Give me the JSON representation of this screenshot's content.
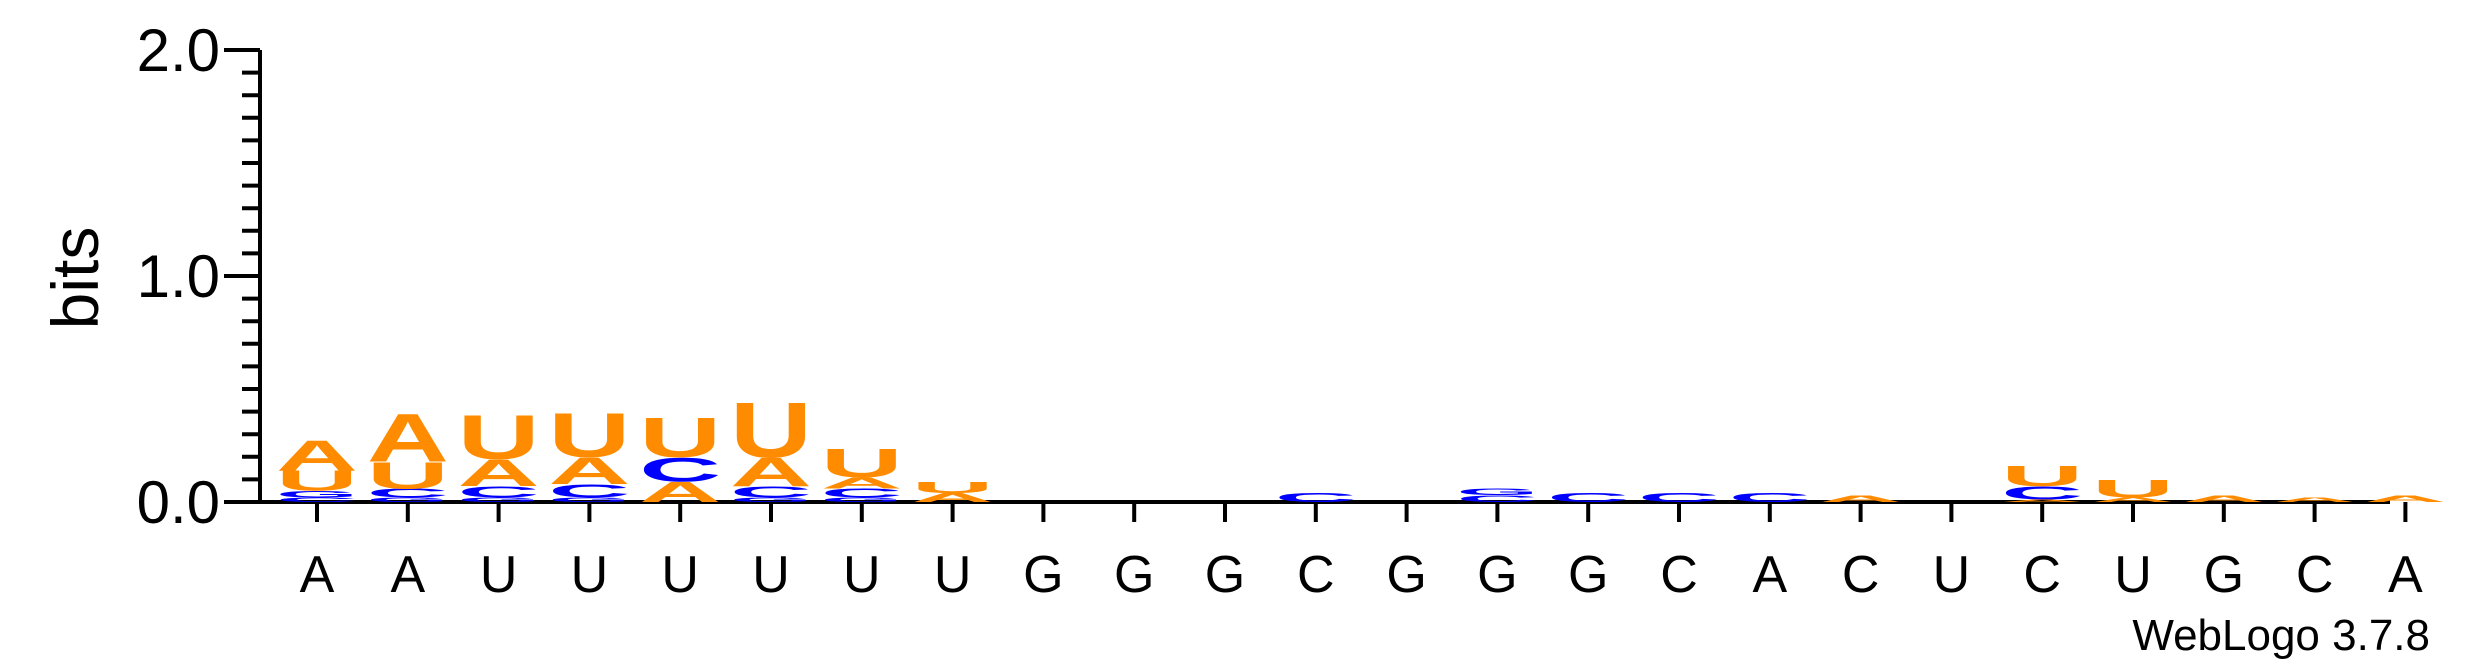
{
  "chart_data": {
    "type": "sequence-logo",
    "ylabel": "bits",
    "ylim": [
      0,
      2.0
    ],
    "y_ticks": [
      "0.0",
      "1.0",
      "2.0"
    ],
    "credit": "WebLogo 3.7.8",
    "colors": {
      "A": "#FF8C00",
      "U": "#FF8C00",
      "C": "#0000FF",
      "G": "#0000FF"
    },
    "positions": [
      {
        "label": "A",
        "stack": [
          {
            "letter": "C",
            "bits": 0.02
          },
          {
            "letter": "G",
            "bits": 0.03
          },
          {
            "letter": "U",
            "bits": 0.09
          },
          {
            "letter": "A",
            "bits": 0.14
          }
        ]
      },
      {
        "label": "A",
        "stack": [
          {
            "letter": "G",
            "bits": 0.02
          },
          {
            "letter": "C",
            "bits": 0.04
          },
          {
            "letter": "U",
            "bits": 0.12
          },
          {
            "letter": "A",
            "bits": 0.22
          }
        ]
      },
      {
        "label": "U",
        "stack": [
          {
            "letter": "G",
            "bits": 0.02
          },
          {
            "letter": "C",
            "bits": 0.05
          },
          {
            "letter": "A",
            "bits": 0.12
          },
          {
            "letter": "U",
            "bits": 0.2
          }
        ]
      },
      {
        "label": "U",
        "stack": [
          {
            "letter": "G",
            "bits": 0.02
          },
          {
            "letter": "C",
            "bits": 0.06
          },
          {
            "letter": "A",
            "bits": 0.12
          },
          {
            "letter": "U",
            "bits": 0.2
          }
        ]
      },
      {
        "label": "U",
        "stack": [
          {
            "letter": "A",
            "bits": 0.09
          },
          {
            "letter": "C",
            "bits": 0.11
          },
          {
            "letter": "U",
            "bits": 0.18
          }
        ]
      },
      {
        "label": "U",
        "stack": [
          {
            "letter": "G",
            "bits": 0.02
          },
          {
            "letter": "C",
            "bits": 0.05
          },
          {
            "letter": "A",
            "bits": 0.13
          },
          {
            "letter": "U",
            "bits": 0.25
          }
        ]
      },
      {
        "label": "U",
        "stack": [
          {
            "letter": "G",
            "bits": 0.02
          },
          {
            "letter": "C",
            "bits": 0.04
          },
          {
            "letter": "A",
            "bits": 0.05
          },
          {
            "letter": "U",
            "bits": 0.13
          }
        ]
      },
      {
        "label": "U",
        "stack": [
          {
            "letter": "A",
            "bits": 0.04
          },
          {
            "letter": "U",
            "bits": 0.05
          }
        ]
      },
      {
        "label": "G",
        "stack": []
      },
      {
        "label": "G",
        "stack": []
      },
      {
        "label": "G",
        "stack": []
      },
      {
        "label": "C",
        "stack": [
          {
            "letter": "C",
            "bits": 0.04
          }
        ]
      },
      {
        "label": "G",
        "stack": []
      },
      {
        "label": "G",
        "stack": [
          {
            "letter": "C",
            "bits": 0.03
          },
          {
            "letter": "G",
            "bits": 0.03
          }
        ]
      },
      {
        "label": "G",
        "stack": [
          {
            "letter": "C",
            "bits": 0.04
          }
        ]
      },
      {
        "label": "C",
        "stack": [
          {
            "letter": "C",
            "bits": 0.04
          }
        ]
      },
      {
        "label": "A",
        "stack": [
          {
            "letter": "C",
            "bits": 0.04
          }
        ]
      },
      {
        "label": "C",
        "stack": [
          {
            "letter": "A",
            "bits": 0.03
          }
        ]
      },
      {
        "label": "U",
        "stack": []
      },
      {
        "label": "C",
        "stack": [
          {
            "letter": "A",
            "bits": 0.01
          },
          {
            "letter": "C",
            "bits": 0.06
          },
          {
            "letter": "U",
            "bits": 0.09
          }
        ]
      },
      {
        "label": "U",
        "stack": [
          {
            "letter": "A",
            "bits": 0.02
          },
          {
            "letter": "U",
            "bits": 0.08
          }
        ]
      },
      {
        "label": "G",
        "stack": [
          {
            "letter": "A",
            "bits": 0.03
          }
        ]
      },
      {
        "label": "C",
        "stack": [
          {
            "letter": "A",
            "bits": 0.02
          }
        ]
      },
      {
        "label": "A",
        "stack": [
          {
            "letter": "A",
            "bits": 0.03
          }
        ]
      }
    ]
  }
}
